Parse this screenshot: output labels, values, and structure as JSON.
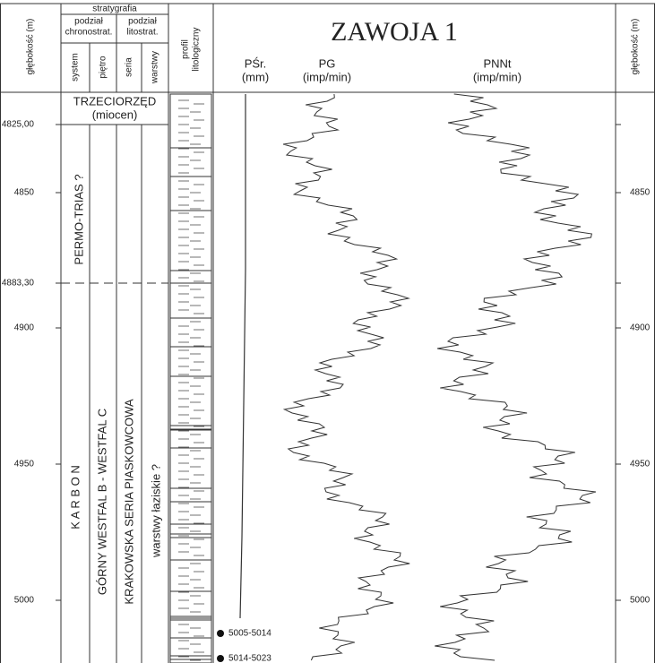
{
  "header": {
    "stratigraphy": "stratygrafia",
    "chronostrat": [
      "podział",
      "chronostrat."
    ],
    "litostrat": [
      "podział",
      "litostrat."
    ],
    "columns": [
      "system",
      "piętro",
      "seria",
      "warstwy"
    ],
    "profile": [
      "profil",
      "litologiczny"
    ],
    "depth_label": "głębokość (m)"
  },
  "title": "ZAWOJA 1",
  "curves": [
    {
      "name": "PŚr.",
      "unit": "(mm)"
    },
    {
      "name": "PG",
      "unit": "(imp/min)"
    },
    {
      "name": "PNNt",
      "unit": "(imp/min)"
    }
  ],
  "units": {
    "tertiary": [
      "TRZECIORZĘD",
      "(miocen)"
    ],
    "permo_trias": "PERMO-TRIAS ?",
    "carbon": "K A R B O N",
    "stage": "GÓRNY WESTFAL B - WESTFAL C",
    "series": "KRAKOWSKA SERIA PIASKOWCOWA",
    "beds": "warstwy łaziskie ?"
  },
  "depth_labels": [
    "4825,00",
    "4850",
    "4883,30",
    "4900",
    "4950",
    "5000"
  ],
  "samples": [
    "5005-5014",
    "5014-5023"
  ]
}
